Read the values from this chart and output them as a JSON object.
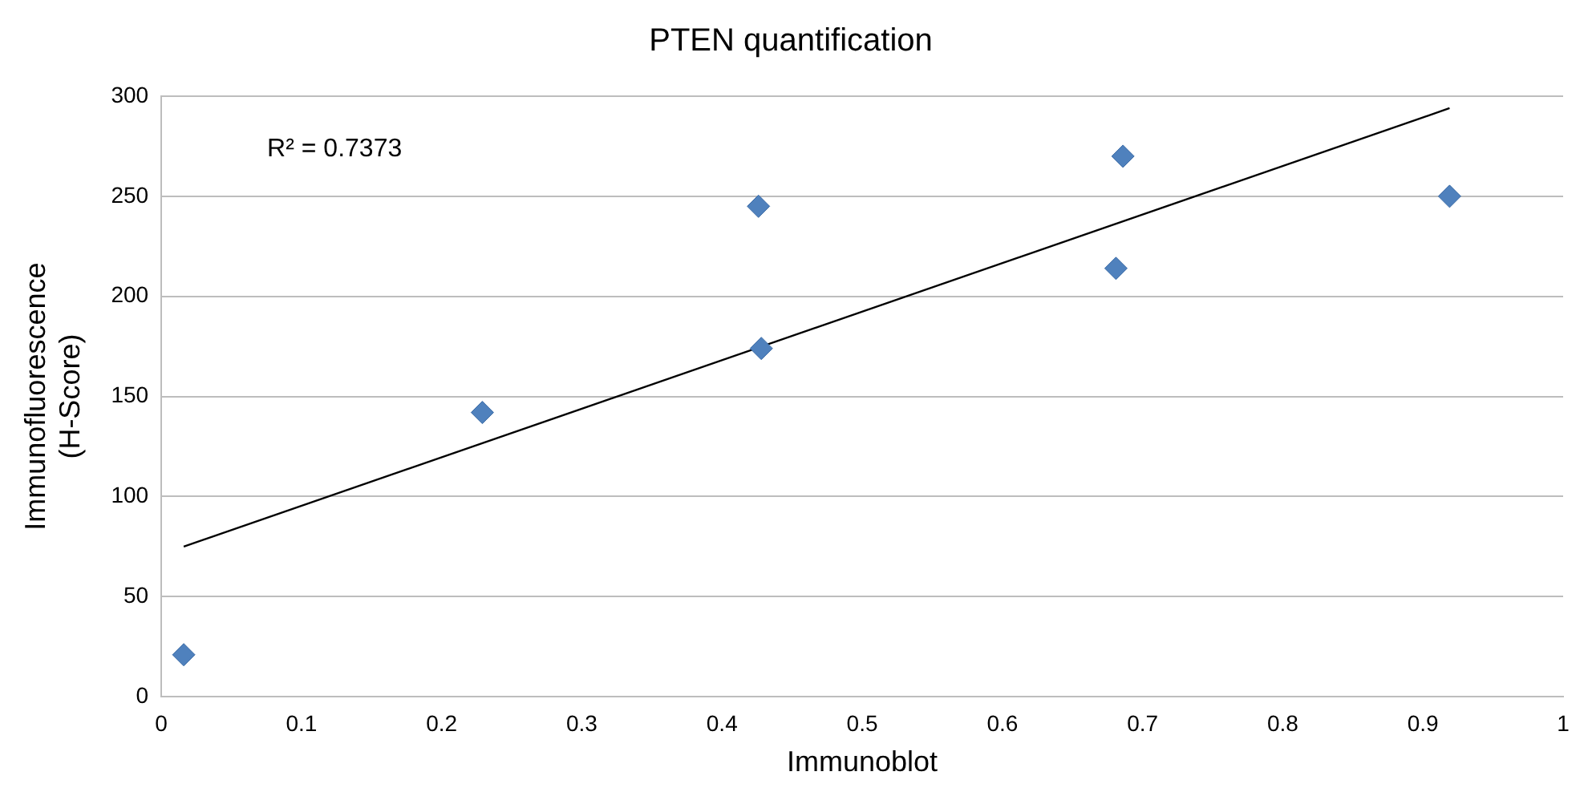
{
  "chart_data": {
    "type": "scatter",
    "title": "PTEN quantification",
    "xlabel": "Immunoblot",
    "ylabel": "Immunofluorescence\n(H-Score)",
    "annotations": [
      "R² = 0.7373"
    ],
    "series": [
      {
        "type": "scatter",
        "color": "#4f81bd",
        "x": [
          0.016,
          0.229,
          0.426,
          0.428,
          0.686,
          0.681,
          0.919
        ],
        "values": [
          21,
          142,
          245,
          174,
          270,
          214,
          250
        ]
      },
      {
        "type": "line",
        "color": "#000000",
        "marker": "none",
        "x": [
          0.016,
          0.919
        ],
        "values": [
          75,
          294
        ]
      }
    ],
    "marker": "diamond",
    "xlim": [
      0,
      1
    ],
    "xticks": [
      0,
      0.1,
      0.2,
      0.3,
      0.4,
      0.5,
      0.6,
      0.7,
      0.8,
      0.9,
      1
    ],
    "ylim": [
      0,
      300
    ],
    "yticks": [
      0,
      50,
      100,
      150,
      200,
      250,
      300
    ],
    "grid": "y",
    "legend": false
  }
}
